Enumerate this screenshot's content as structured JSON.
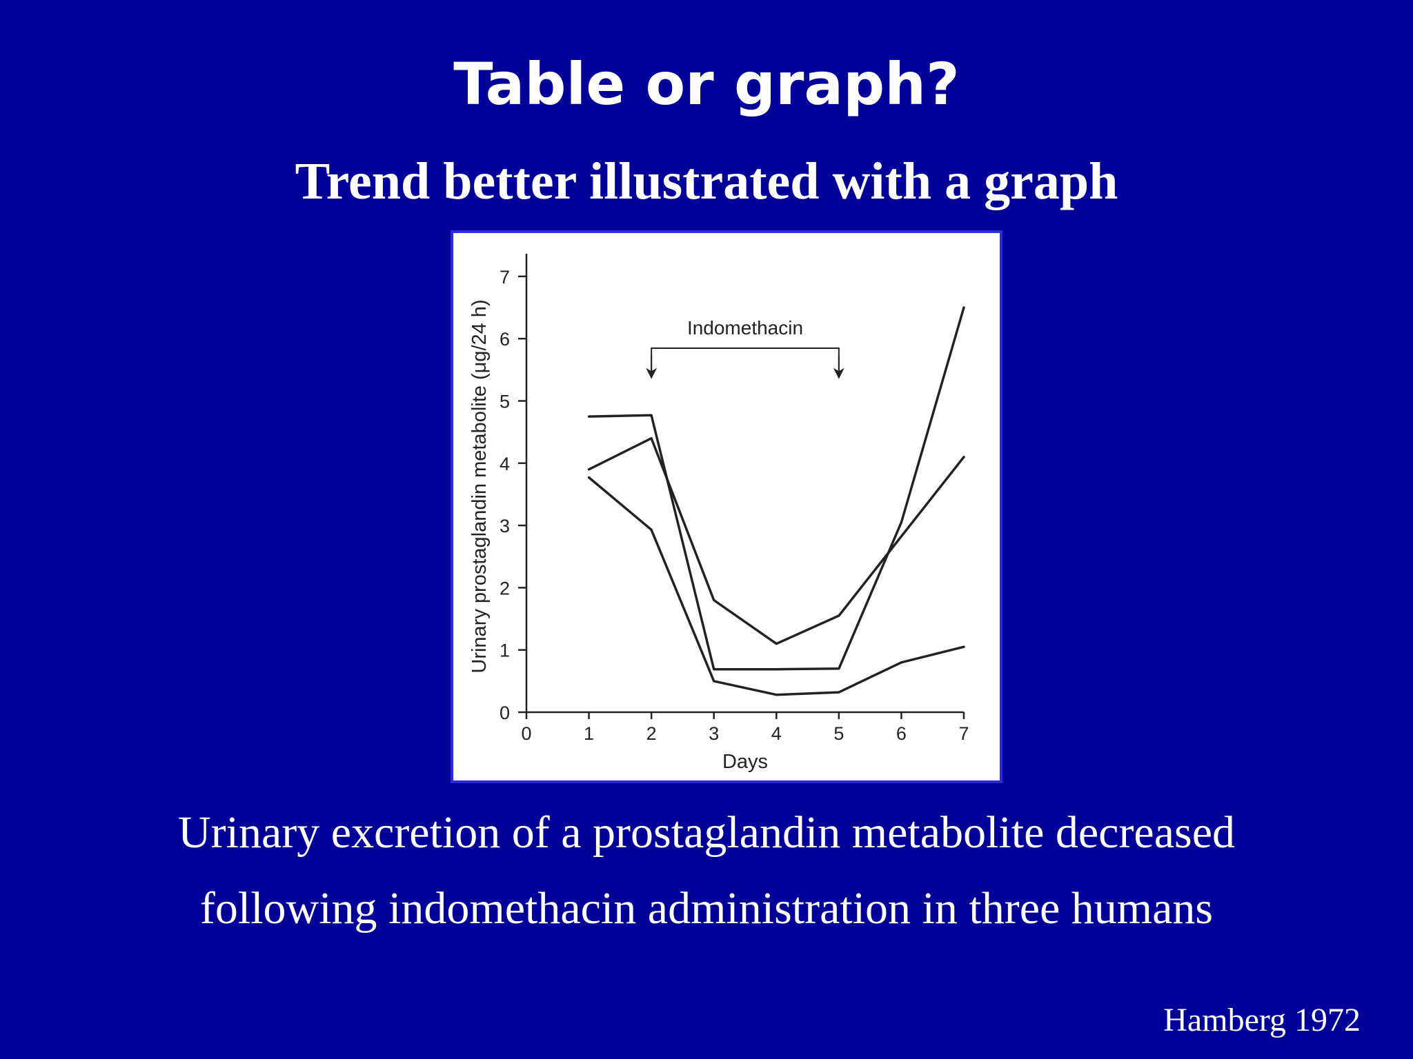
{
  "slide": {
    "title": "Table or graph?",
    "subtitle": "Trend better illustrated with a graph",
    "caption_line1": "Urinary excretion of a prostaglandin metabolite decreased",
    "caption_line2": "following indomethacin administration in three humans",
    "citation": "Hamberg 1972",
    "colors": {
      "background": "#000099",
      "text": "#ffffff",
      "chart_background": "#ffffff",
      "chart_border": "#2b2bd9",
      "series_line": "#222222"
    }
  },
  "chart_data": {
    "type": "line",
    "title": "",
    "xlabel": "Days",
    "ylabel": "Urinary prostaglandin metabolite (μg/24 h)",
    "xlim": [
      0,
      7
    ],
    "ylim": [
      0,
      7
    ],
    "xticks": [
      0,
      1,
      2,
      3,
      4,
      5,
      6,
      7
    ],
    "yticks": [
      0,
      1,
      2,
      3,
      4,
      5,
      6,
      7
    ],
    "grid": false,
    "annotation": {
      "text": "Indomethacin",
      "start_day": 2,
      "end_day": 5
    },
    "series": [
      {
        "x": [
          1,
          2,
          3,
          4,
          5,
          6,
          7
        ],
        "y": [
          4.75,
          4.77,
          0.69,
          0.69,
          0.7,
          3.05,
          6.5
        ]
      },
      {
        "x": [
          1,
          2,
          3,
          4,
          5,
          7
        ],
        "y": [
          3.9,
          4.4,
          1.8,
          1.1,
          1.55,
          4.1
        ]
      },
      {
        "x": [
          1,
          2,
          3,
          4,
          5,
          6,
          7
        ],
        "y": [
          3.77,
          2.93,
          0.5,
          0.28,
          0.32,
          0.8,
          1.05
        ]
      }
    ]
  }
}
